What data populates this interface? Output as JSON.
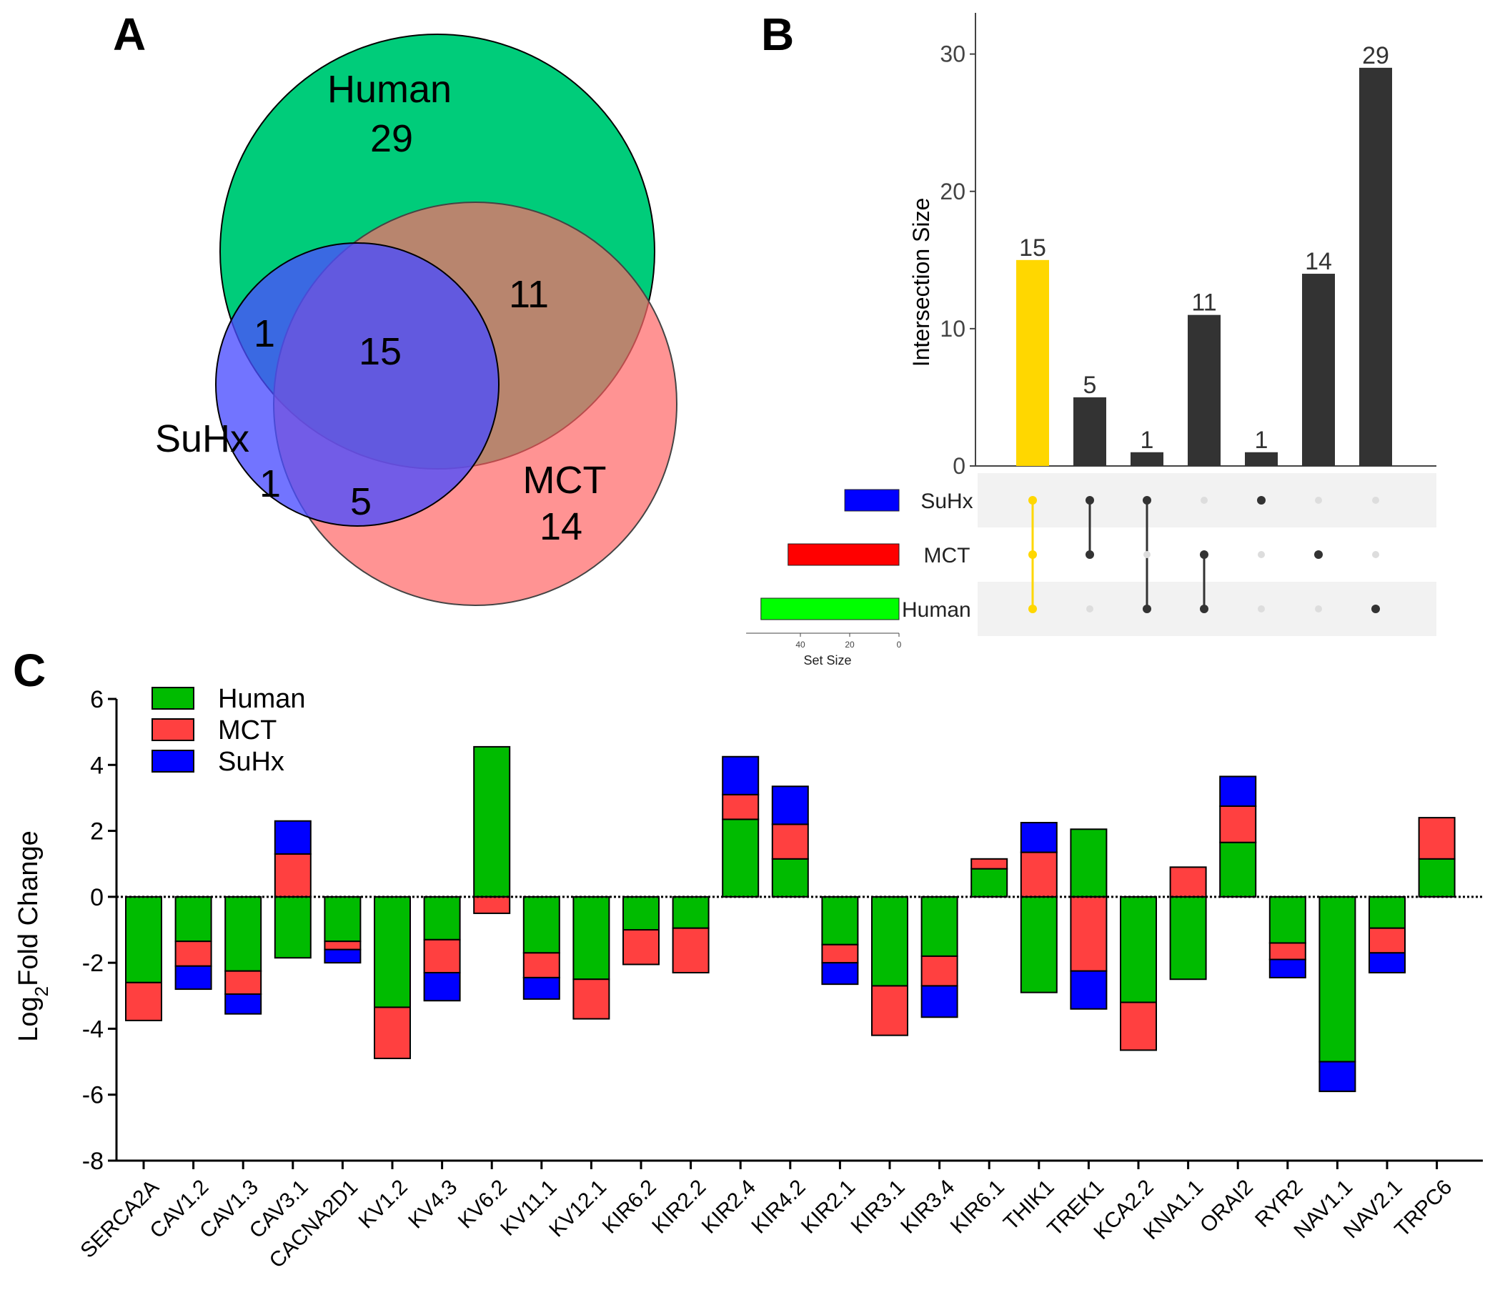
{
  "chart_data": [
    {
      "panel": "A",
      "type": "venn",
      "sets": [
        {
          "name": "Human",
          "only": 29,
          "color": "#00CC7A"
        },
        {
          "name": "MCT",
          "only": 14,
          "color": "#FF6A6A"
        },
        {
          "name": "SuHx",
          "only": 1,
          "color": "#4A4DFF"
        }
      ],
      "overlaps": {
        "human_suhx": 1,
        "human_mct": 11,
        "all_three": 15,
        "mct_suhx": 5
      }
    },
    {
      "panel": "B",
      "type": "upset",
      "ylabel": "Intersection Size",
      "ylim": [
        0,
        33
      ],
      "yticks": [
        0,
        10,
        20,
        30
      ],
      "sets": [
        "SuHx",
        "MCT",
        "Human"
      ],
      "set_colors": [
        "#0000FF",
        "#FF0000",
        "#00FF00"
      ],
      "set_sizes": [
        22,
        45,
        56
      ],
      "set_size_label": "Set Size",
      "set_size_ticks": [
        40,
        20,
        0
      ],
      "highlight_color": "#FFD700",
      "bar_color": "#333333",
      "intersections": [
        {
          "value": 15,
          "members": [
            1,
            1,
            1
          ],
          "highlight": true
        },
        {
          "value": 5,
          "members": [
            1,
            1,
            0
          ],
          "highlight": false
        },
        {
          "value": 1,
          "members": [
            1,
            0,
            1
          ],
          "highlight": false
        },
        {
          "value": 11,
          "members": [
            0,
            1,
            1
          ],
          "highlight": false
        },
        {
          "value": 1,
          "members": [
            1,
            0,
            0
          ],
          "highlight": false
        },
        {
          "value": 14,
          "members": [
            0,
            1,
            0
          ],
          "highlight": false
        },
        {
          "value": 29,
          "members": [
            0,
            0,
            1
          ],
          "highlight": false
        }
      ]
    },
    {
      "panel": "C",
      "type": "bar",
      "ylabel_main": "Log",
      "ylabel_sub": "2",
      "ylabel_rest": "Fold Change",
      "ylim": [
        -8,
        6
      ],
      "yticks": [
        6,
        4,
        2,
        0,
        -2,
        -4,
        -6,
        -8
      ],
      "series": [
        {
          "name": "Human",
          "color": "#00BB00"
        },
        {
          "name": "MCT",
          "color": "#FF4040"
        },
        {
          "name": "SuHx",
          "color": "#0000FF"
        }
      ],
      "categories": [
        "SERCA2A",
        "CAV1.2",
        "CAV1.3",
        "CAV3.1",
        "CACNA2D1",
        "KV1.2",
        "KV4.3",
        "KV6.2",
        "KV11.1",
        "KV12.1",
        "KIR6.2",
        "KIR2.2",
        "KIR2.4",
        "KIR4.2",
        "KIR2.1",
        "KIR3.1",
        "KIR3.4",
        "KIR6.1",
        "THIK1",
        "TREK1",
        "KCA2.2",
        "KNA1.1",
        "ORAI2",
        "RYR2",
        "NAV1.1",
        "NAV2.1",
        "TRPC6"
      ],
      "values": {
        "Human": [
          -2.6,
          -1.35,
          -2.25,
          -1.85,
          -1.35,
          -3.35,
          -1.3,
          4.55,
          -1.7,
          -2.5,
          -1.0,
          -0.95,
          2.35,
          1.15,
          -1.45,
          -2.7,
          -1.8,
          0.85,
          -2.9,
          2.05,
          -3.2,
          -2.5,
          1.65,
          -1.4,
          -5.0,
          -0.95,
          1.15
        ],
        "MCT": [
          -1.15,
          -0.75,
          -0.7,
          1.3,
          -0.25,
          -1.55,
          -1.0,
          -0.5,
          -0.75,
          -1.2,
          -1.05,
          -1.35,
          0.75,
          1.05,
          -0.55,
          -1.5,
          -0.9,
          0.3,
          1.35,
          -2.25,
          -1.45,
          0.9,
          1.1,
          -0.5,
          0.0,
          -0.75,
          1.25
        ],
        "SuHx": [
          0.0,
          -0.7,
          -0.6,
          1.0,
          -0.4,
          0.0,
          -0.85,
          0.0,
          -0.65,
          0.0,
          0.0,
          0.0,
          1.15,
          1.15,
          -0.65,
          0.0,
          -0.95,
          0.0,
          0.9,
          -1.15,
          0.0,
          0.0,
          0.9,
          -0.55,
          -0.9,
          -0.6,
          0.0
        ]
      }
    }
  ]
}
